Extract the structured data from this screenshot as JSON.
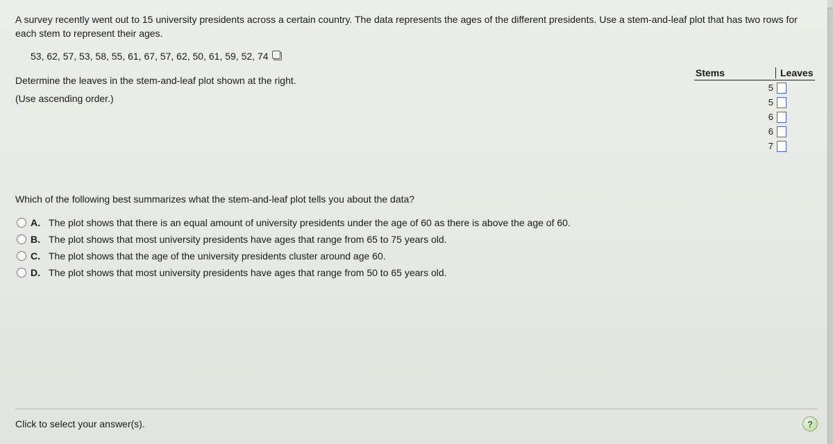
{
  "question": {
    "intro": "A survey recently went out to 15 university presidents across a certain country. The data represents the ages of the different presidents. Use a stem-and-leaf plot that has two rows for each stem to represent their ages.",
    "data_values": "53, 62, 57, 53, 58, 55, 61, 67, 57, 62, 50, 61, 59, 52, 74",
    "instruction1": "Determine the leaves in the stem-and-leaf plot shown at the right.",
    "instruction2": "(Use ascending order.)",
    "q2": "Which of the following best summarizes what the stem-and-leaf plot tells you about the data?"
  },
  "stem_leaf": {
    "header_stems": "Stems",
    "header_leaves": "Leaves",
    "stems": [
      "5",
      "5",
      "6",
      "6",
      "7"
    ]
  },
  "options": [
    {
      "letter": "A.",
      "text": "The plot shows that there is an equal amount of university presidents under the age of 60 as there is above the age of 60."
    },
    {
      "letter": "B.",
      "text": "The plot shows that most university presidents have ages that range from 65 to 75 years old."
    },
    {
      "letter": "C.",
      "text": "The plot shows that the age of the university presidents cluster around age 60."
    },
    {
      "letter": "D.",
      "text": "The plot shows that most university presidents have ages that range from 50 to 65 years old."
    }
  ],
  "footer": {
    "hint": "Click to select your answer(s).",
    "help": "?"
  },
  "colors": {
    "input_border": "#4a67c7",
    "help_bg_from": "#e8f3dd",
    "help_bg_to": "#bcd6a0"
  }
}
